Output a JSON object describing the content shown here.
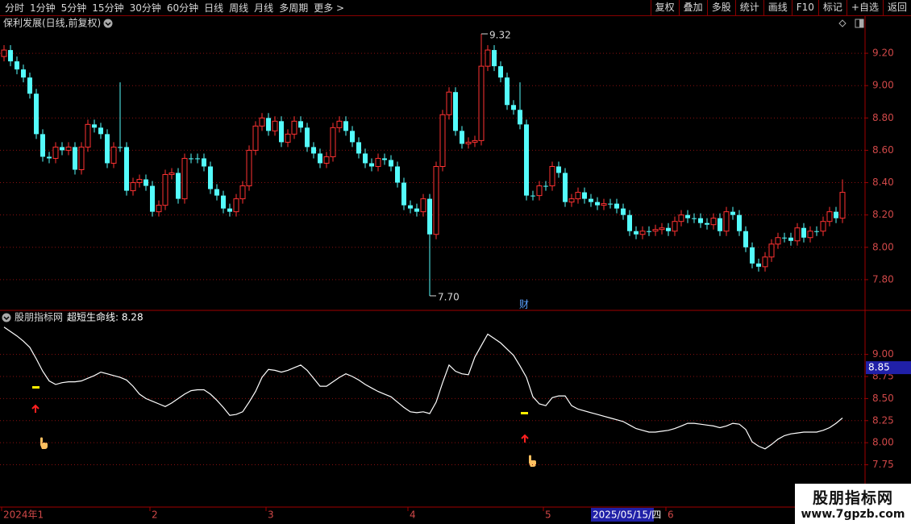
{
  "toolbar": {
    "left": [
      "分时",
      "1分钟",
      "5分钟",
      "15分钟",
      "30分钟",
      "60分钟",
      "日线",
      "周线",
      "月线",
      "多周期",
      "更多 >"
    ],
    "right": [
      "复权",
      "叠加",
      "多股",
      "统计",
      "画线",
      "F10",
      "标记",
      "+自选",
      "返回"
    ]
  },
  "chart_data": [
    {
      "type": "candlestick",
      "title": "保利发展(日线,前复权)",
      "categories": [
        "2024年1",
        null,
        null,
        null,
        null,
        null,
        null,
        null,
        null,
        null,
        null,
        null,
        null,
        null,
        null,
        null,
        null,
        null,
        null,
        null,
        null,
        null,
        null,
        "2",
        null,
        null,
        null,
        null,
        null,
        null,
        null,
        null,
        null,
        null,
        null,
        null,
        null,
        null,
        null,
        null,
        null,
        "3",
        null,
        null,
        null,
        null,
        null,
        null,
        null,
        null,
        null,
        null,
        null,
        null,
        null,
        null,
        null,
        null,
        null,
        null,
        null,
        null,
        null,
        "4",
        null,
        null,
        null,
        null,
        null,
        null,
        null,
        null,
        null,
        null,
        null,
        null,
        null,
        null,
        null,
        null,
        null,
        null,
        null,
        null,
        "5",
        null,
        null,
        null,
        null,
        null,
        null,
        null,
        null,
        null,
        null,
        null,
        null,
        null,
        null,
        null,
        null,
        null,
        null,
        "6",
        null,
        null,
        null,
        null,
        null,
        null,
        null,
        null,
        null,
        null,
        null,
        null,
        null,
        null,
        null,
        null,
        null,
        null,
        null,
        null,
        null,
        null,
        null,
        null,
        null,
        null,
        null
      ],
      "open": [
        9.18,
        9.22,
        9.15,
        9.1,
        9.05,
        8.95,
        8.7,
        8.56,
        8.55,
        8.62,
        8.6,
        8.62,
        8.48,
        8.62,
        8.76,
        8.74,
        8.7,
        8.52,
        8.62,
        8.62,
        8.35,
        8.4,
        8.42,
        8.38,
        8.22,
        8.26,
        8.45,
        8.46,
        8.3,
        8.55,
        8.55,
        8.55,
        8.5,
        8.36,
        8.32,
        8.24,
        8.22,
        8.3,
        8.38,
        8.6,
        8.75,
        8.8,
        8.72,
        8.78,
        8.65,
        8.7,
        8.78,
        8.74,
        8.62,
        8.58,
        8.52,
        8.56,
        8.74,
        8.78,
        8.72,
        8.65,
        8.58,
        8.52,
        8.5,
        8.55,
        8.54,
        8.5,
        8.4,
        8.26,
        8.24,
        8.22,
        8.3,
        8.08,
        8.5,
        8.82,
        8.96,
        8.72,
        8.64,
        8.65,
        8.66,
        9.12,
        9.22,
        9.12,
        9.05,
        8.88,
        8.85,
        8.76,
        8.32,
        8.32,
        8.38,
        8.38,
        8.5,
        8.46,
        8.28,
        8.3,
        8.34,
        8.3,
        8.28,
        8.26,
        8.27,
        8.27,
        8.24,
        8.2,
        8.1,
        8.08,
        8.1,
        8.1,
        8.11,
        8.12,
        8.1,
        8.16,
        8.2,
        8.18,
        8.18,
        8.15,
        8.14,
        8.18,
        8.1,
        8.22,
        8.2,
        8.1,
        8.0,
        7.9,
        7.88,
        7.94,
        8.02,
        8.06,
        8.06,
        8.04,
        8.12,
        8.06,
        8.1,
        8.1,
        8.16,
        8.22,
        8.18
      ],
      "high": [
        9.25,
        9.25,
        9.18,
        9.13,
        9.08,
        8.98,
        8.73,
        8.59,
        8.65,
        8.65,
        8.65,
        8.65,
        8.65,
        8.79,
        8.79,
        8.77,
        8.73,
        8.65,
        9.02,
        8.65,
        8.43,
        8.45,
        8.45,
        8.41,
        8.29,
        8.48,
        8.49,
        8.49,
        8.58,
        8.58,
        8.58,
        8.58,
        8.53,
        8.39,
        8.35,
        8.27,
        8.33,
        8.41,
        8.63,
        8.78,
        8.83,
        8.83,
        8.81,
        8.81,
        8.73,
        8.81,
        8.81,
        8.77,
        8.65,
        8.61,
        8.59,
        8.77,
        8.81,
        8.81,
        8.75,
        8.68,
        8.61,
        8.55,
        8.58,
        8.58,
        8.57,
        8.53,
        8.43,
        8.29,
        8.27,
        8.33,
        8.33,
        8.53,
        8.85,
        8.99,
        8.99,
        8.75,
        8.68,
        8.69,
        9.32,
        9.25,
        9.25,
        9.15,
        9.08,
        8.91,
        9.02,
        8.79,
        8.35,
        8.41,
        8.41,
        8.53,
        8.53,
        8.49,
        8.33,
        8.37,
        8.37,
        8.33,
        8.31,
        8.3,
        8.3,
        8.3,
        8.27,
        8.23,
        8.13,
        8.13,
        8.13,
        8.14,
        8.15,
        8.15,
        8.19,
        8.23,
        8.23,
        8.21,
        8.21,
        8.18,
        8.21,
        8.21,
        8.25,
        8.25,
        8.23,
        8.13,
        8.03,
        7.93,
        7.97,
        8.05,
        8.09,
        8.09,
        8.09,
        8.15,
        8.15,
        8.13,
        8.13,
        8.19,
        8.25,
        8.25,
        8.42
      ],
      "low": [
        9.15,
        9.12,
        9.07,
        9.02,
        8.92,
        8.67,
        8.53,
        8.52,
        8.52,
        8.57,
        8.57,
        8.45,
        8.45,
        8.59,
        8.71,
        8.67,
        8.49,
        8.49,
        8.59,
        8.32,
        8.32,
        8.37,
        8.35,
        8.19,
        8.19,
        8.23,
        8.42,
        8.27,
        8.27,
        8.52,
        8.52,
        8.47,
        8.33,
        8.29,
        8.21,
        8.19,
        8.19,
        8.27,
        8.35,
        8.57,
        8.72,
        8.69,
        8.69,
        8.62,
        8.62,
        8.67,
        8.71,
        8.59,
        8.55,
        8.49,
        8.49,
        8.53,
        8.71,
        8.69,
        8.62,
        8.55,
        8.49,
        8.47,
        8.47,
        8.51,
        8.47,
        8.37,
        8.23,
        8.21,
        8.19,
        8.19,
        7.7,
        8.05,
        8.47,
        8.79,
        8.69,
        8.61,
        8.61,
        8.62,
        8.63,
        9.09,
        9.09,
        9.02,
        8.85,
        8.82,
        8.73,
        8.29,
        8.29,
        8.29,
        8.35,
        8.35,
        8.43,
        8.25,
        8.25,
        8.27,
        8.27,
        8.25,
        8.23,
        8.23,
        8.24,
        8.21,
        8.17,
        8.07,
        8.05,
        8.05,
        8.07,
        8.07,
        8.08,
        8.07,
        8.07,
        8.13,
        8.15,
        8.15,
        8.12,
        8.11,
        8.11,
        8.07,
        8.07,
        8.17,
        8.07,
        7.97,
        7.87,
        7.85,
        7.85,
        7.91,
        7.99,
        8.03,
        8.01,
        8.01,
        8.03,
        8.03,
        8.07,
        8.07,
        8.13,
        8.15,
        8.15
      ],
      "close": [
        9.22,
        9.15,
        9.1,
        9.05,
        8.95,
        8.7,
        8.56,
        8.55,
        8.62,
        8.6,
        8.62,
        8.48,
        8.62,
        8.76,
        8.74,
        8.7,
        8.52,
        8.62,
        8.62,
        8.35,
        8.4,
        8.42,
        8.38,
        8.22,
        8.26,
        8.45,
        8.46,
        8.3,
        8.55,
        8.55,
        8.55,
        8.5,
        8.36,
        8.32,
        8.24,
        8.22,
        8.3,
        8.38,
        8.6,
        8.75,
        8.8,
        8.72,
        8.78,
        8.65,
        8.7,
        8.78,
        8.74,
        8.62,
        8.58,
        8.52,
        8.56,
        8.74,
        8.78,
        8.72,
        8.65,
        8.58,
        8.52,
        8.5,
        8.55,
        8.54,
        8.5,
        8.4,
        8.26,
        8.24,
        8.22,
        8.3,
        8.08,
        8.5,
        8.82,
        8.96,
        8.72,
        8.64,
        8.65,
        8.66,
        9.12,
        9.22,
        9.12,
        9.05,
        8.88,
        8.85,
        8.76,
        8.32,
        8.32,
        8.38,
        8.38,
        8.5,
        8.46,
        8.28,
        8.3,
        8.34,
        8.3,
        8.28,
        8.26,
        8.27,
        8.27,
        8.24,
        8.2,
        8.1,
        8.08,
        8.1,
        8.1,
        8.11,
        8.12,
        8.1,
        8.16,
        8.2,
        8.18,
        8.18,
        8.15,
        8.14,
        8.18,
        8.1,
        8.22,
        8.2,
        8.1,
        8.0,
        7.9,
        7.88,
        7.94,
        8.02,
        8.06,
        8.06,
        8.04,
        8.12,
        8.06,
        8.1,
        8.1,
        8.16,
        8.22,
        8.18,
        8.34
      ],
      "up_color": "#ff3232",
      "down_color": "#54fcfc",
      "ylim": [
        7.62,
        9.34
      ],
      "yticks": [
        {
          "value": 7.8,
          "label": "7.80"
        },
        {
          "value": 8.0,
          "label": "8.00"
        },
        {
          "value": 8.2,
          "label": "8.20"
        },
        {
          "value": 8.4,
          "label": "8.40"
        },
        {
          "value": 8.6,
          "label": "8.60"
        },
        {
          "value": 8.8,
          "label": "8.80"
        },
        {
          "value": 9.0,
          "label": "9.00"
        },
        {
          "value": 9.2,
          "label": "9.20"
        }
      ],
      "grid": true,
      "annotations": [
        {
          "value": 9.32,
          "label": "9.32",
          "at": "high"
        },
        {
          "value": 7.7,
          "label": "7.70",
          "at": "low"
        }
      ],
      "event_marker": "财",
      "cursor_date": "2025/05/15/四"
    },
    {
      "type": "line",
      "title": "股朋指标网",
      "legend": "超短生命线: 8.28",
      "series": [
        {
          "color": "#ffffff",
          "values": [
            9.31,
            9.26,
            9.21,
            9.15,
            9.08,
            8.95,
            8.81,
            8.7,
            8.66,
            8.68,
            8.69,
            8.69,
            8.7,
            8.73,
            8.76,
            8.8,
            8.78,
            8.76,
            8.74,
            8.71,
            8.64,
            8.55,
            8.5,
            8.47,
            8.44,
            8.41,
            8.45,
            8.5,
            8.55,
            8.59,
            8.6,
            8.6,
            8.55,
            8.48,
            8.4,
            8.31,
            8.32,
            8.35,
            8.46,
            8.58,
            8.74,
            8.83,
            8.82,
            8.8,
            8.82,
            8.85,
            8.88,
            8.82,
            8.73,
            8.64,
            8.64,
            8.69,
            8.74,
            8.78,
            8.75,
            8.71,
            8.66,
            8.62,
            8.58,
            8.55,
            8.52,
            8.46,
            8.4,
            8.35,
            8.34,
            8.35,
            8.33,
            8.46,
            8.68,
            8.88,
            8.81,
            8.78,
            8.77,
            8.97,
            9.1,
            9.23,
            9.18,
            9.13,
            9.06,
            8.99,
            8.87,
            8.74,
            8.52,
            8.44,
            8.42,
            8.51,
            8.53,
            8.53,
            8.42,
            8.38,
            8.36,
            8.34,
            8.32,
            8.3,
            8.28,
            8.26,
            8.24,
            8.2,
            8.16,
            8.14,
            8.12,
            8.12,
            8.13,
            8.14,
            8.16,
            8.19,
            8.22,
            8.22,
            8.21,
            8.2,
            8.19,
            8.17,
            8.19,
            8.22,
            8.21,
            8.15,
            8.01,
            7.96,
            7.93,
            7.98,
            8.04,
            8.08,
            8.1,
            8.11,
            8.12,
            8.12,
            8.12,
            8.14,
            8.17,
            8.22,
            8.28
          ]
        }
      ],
      "ylim": [
        7.28,
        9.49
      ],
      "yticks": [
        7.75,
        {
          "value": 8.0,
          "label": "8.00"
        },
        8.25,
        {
          "value": 8.5,
          "label": "8.50"
        },
        8.75,
        {
          "value": 9.0,
          "label": "9.00"
        }
      ],
      "grid": true,
      "cursor_value": 8.85
    }
  ],
  "watermark": {
    "title": "股朋指标网",
    "url": "www.7gpzb.com"
  }
}
